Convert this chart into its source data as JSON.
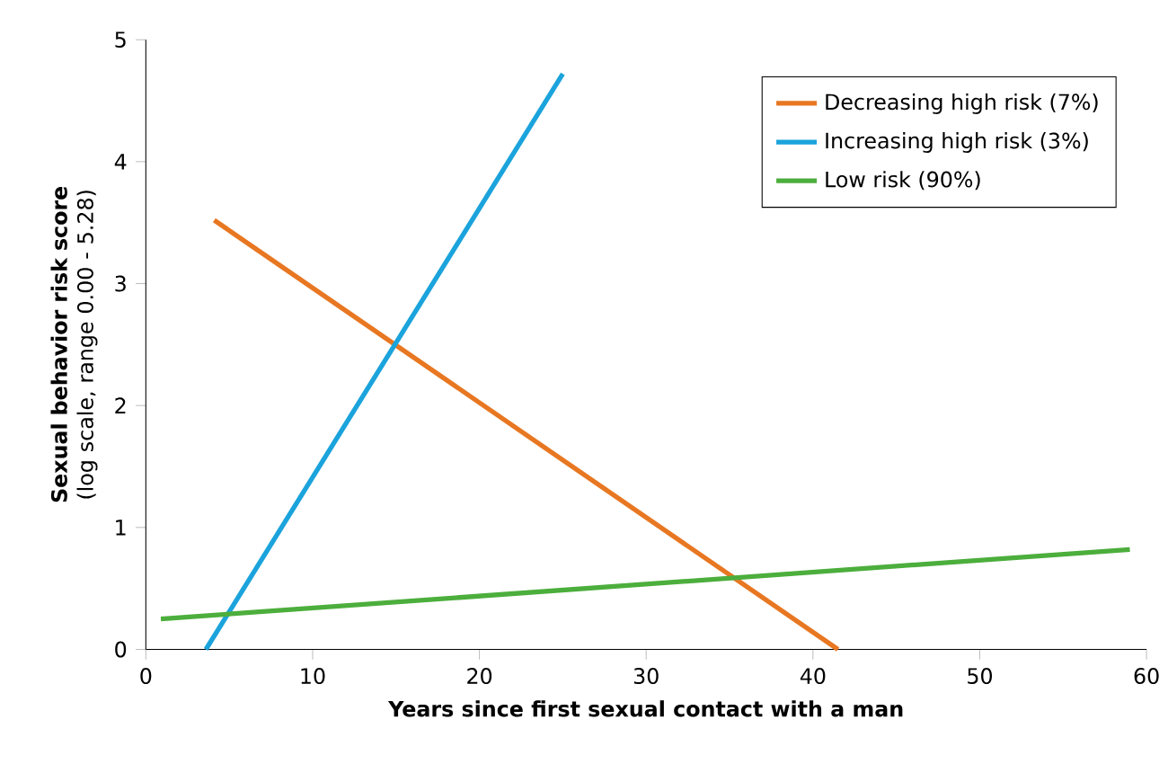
{
  "chart_data": {
    "type": "line",
    "xlabel": "Years since first sexual contact with a man",
    "ylabel": "**Sexual behavior risk score** (log scale, range 0.00 - 5.28)",
    "xlim": [
      0,
      60
    ],
    "ylim": [
      0,
      5
    ],
    "xticks": [
      0,
      10,
      20,
      30,
      40,
      50,
      60
    ],
    "yticks": [
      0,
      1,
      2,
      3,
      4,
      5
    ],
    "legend": "top right",
    "grid": false,
    "marker": "none",
    "line_style": "solid",
    "series": [
      {
        "name": "Decreasing high risk (7%)",
        "color": "#e87722",
        "x": [
          4.1,
          41.5
        ],
        "values": [
          3.52,
          0
        ]
      },
      {
        "name": "Increasing high risk (3%)",
        "color": "#1ba3dc",
        "x": [
          3.6,
          25
        ],
        "values": [
          0,
          4.72
        ]
      },
      {
        "name": "Low risk (90%)",
        "color": "#4cae3c",
        "x": [
          0.9,
          59
        ],
        "values": [
          0.25,
          0.82
        ]
      }
    ]
  }
}
